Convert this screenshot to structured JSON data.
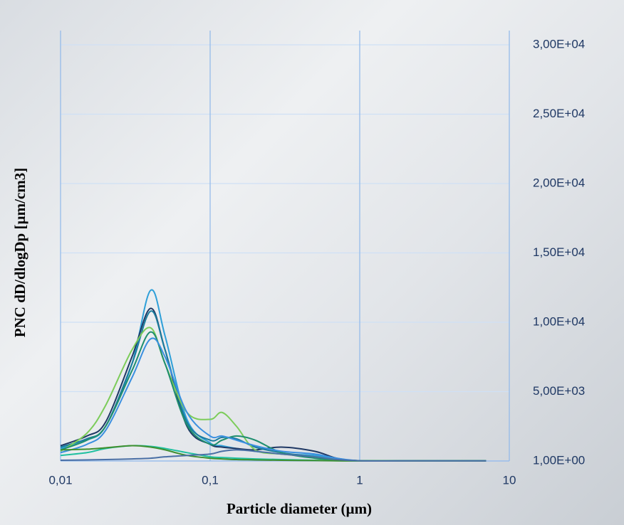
{
  "chart_data": {
    "type": "line",
    "x_label": "Particle diameter (µm)",
    "y_label": "PNC dD/dlogDp  [µm/cm3]",
    "x_log": true,
    "grid": true,
    "y_axis_side": "right",
    "xlim": [
      0.01,
      10
    ],
    "xticks": [
      {
        "value": 0.01,
        "label": "0,01"
      },
      {
        "value": 0.1,
        "label": "0,1"
      },
      1,
      10
    ],
    "ylim": [
      0,
      30000
    ],
    "yticks": [
      {
        "value": 1,
        "label": "1,00E+00"
      },
      {
        "value": 5000,
        "label": "5,00E+03"
      },
      {
        "value": 10000,
        "label": "1,00E+04"
      },
      {
        "value": 15000,
        "label": "1,50E+04"
      },
      {
        "value": 20000,
        "label": "2,00E+04"
      },
      {
        "value": 25000,
        "label": "2,50E+04"
      },
      {
        "value": 30000,
        "label": "3,00E+04"
      }
    ],
    "x": [
      0.01,
      0.015,
      0.02,
      0.03,
      0.04,
      0.05,
      0.07,
      0.1,
      0.12,
      0.15,
      0.2,
      0.3,
      0.5,
      0.7,
      1,
      2,
      7
    ],
    "series": [
      {
        "color": "#2e9fd8",
        "values": [
          900,
          1500,
          2500,
          7000,
          12300,
          9000,
          3000,
          1300,
          1100,
          900,
          700,
          500,
          400,
          150,
          20,
          5,
          5
        ]
      },
      {
        "color": "#1f3864",
        "values": [
          1100,
          1800,
          2800,
          7500,
          11000,
          8000,
          2500,
          1200,
          1000,
          900,
          800,
          1000,
          700,
          200,
          20,
          5,
          5
        ]
      },
      {
        "color": "#1a7c9c",
        "values": [
          1000,
          1600,
          2500,
          7000,
          10800,
          8000,
          2800,
          1500,
          1700,
          1600,
          1000,
          600,
          300,
          100,
          20,
          5,
          5
        ]
      },
      {
        "color": "#7ccc5a",
        "values": [
          700,
          2000,
          4000,
          8000,
          9600,
          7000,
          3500,
          3000,
          3500,
          2500,
          800,
          500,
          300,
          100,
          20,
          5,
          5
        ]
      },
      {
        "color": "#1e8e6e",
        "values": [
          800,
          1500,
          2500,
          6500,
          9300,
          7000,
          2600,
          1200,
          1500,
          1800,
          1500,
          600,
          200,
          80,
          10,
          5,
          5
        ]
      },
      {
        "color": "#3a8fe0",
        "values": [
          600,
          1200,
          2200,
          6000,
          8800,
          7500,
          3500,
          1800,
          1800,
          1500,
          1100,
          700,
          500,
          200,
          20,
          5,
          5
        ]
      },
      {
        "color": "#20c0a0",
        "values": [
          400,
          600,
          900,
          1100,
          1050,
          900,
          600,
          300,
          250,
          200,
          150,
          100,
          50,
          20,
          5,
          5,
          5
        ]
      },
      {
        "color": "#3f8f2f",
        "values": [
          800,
          850,
          950,
          1100,
          1000,
          800,
          400,
          200,
          150,
          100,
          80,
          50,
          30,
          10,
          5,
          5,
          5
        ]
      },
      {
        "color": "#4a6fa5",
        "values": [
          50,
          80,
          100,
          150,
          200,
          300,
          400,
          500,
          700,
          800,
          700,
          500,
          300,
          100,
          10,
          5,
          5
        ]
      }
    ]
  }
}
